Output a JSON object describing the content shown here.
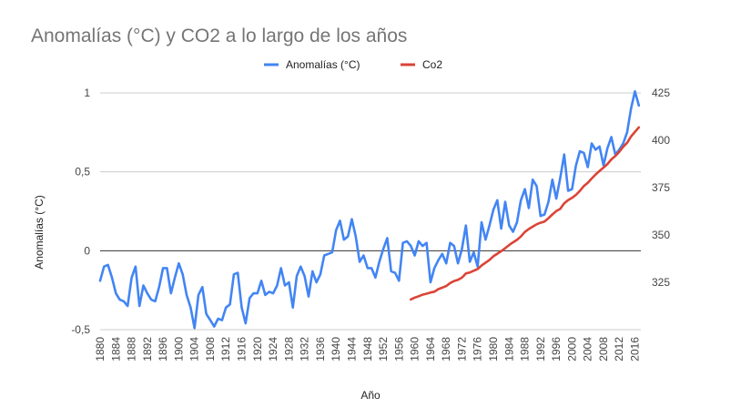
{
  "chart_data": {
    "type": "line",
    "title": "Anomalías (°C) y CO2 a lo largo de los años",
    "xlabel": "Año",
    "ylabel": "Anomalías (°C)",
    "y2label": "",
    "xlim": [
      1880,
      2017
    ],
    "ylim": [
      -0.5,
      1
    ],
    "y2lim": [
      300,
      425
    ],
    "yticks": [
      -0.5,
      0,
      0.5,
      1
    ],
    "ytick_labels": [
      "-0,5",
      "0",
      "0,5",
      "1"
    ],
    "y2ticks": [
      325,
      350,
      375,
      400,
      425
    ],
    "y2tick_labels": [
      "325",
      "350",
      "375",
      "400",
      "425"
    ],
    "xticks": [
      1880,
      1884,
      1888,
      1892,
      1896,
      1900,
      1904,
      1908,
      1912,
      1916,
      1920,
      1924,
      1928,
      1932,
      1936,
      1940,
      1944,
      1948,
      1952,
      1956,
      1960,
      1964,
      1968,
      1972,
      1976,
      1980,
      1984,
      1988,
      1992,
      1996,
      2000,
      2004,
      2008,
      2012,
      2016
    ],
    "grid": true,
    "legend_position": "top",
    "series": [
      {
        "name": "Anomalías (°C)",
        "axis": "left",
        "color": "#4285f4",
        "x": [
          1880,
          1881,
          1882,
          1883,
          1884,
          1885,
          1886,
          1887,
          1888,
          1889,
          1890,
          1891,
          1892,
          1893,
          1894,
          1895,
          1896,
          1897,
          1898,
          1899,
          1900,
          1901,
          1902,
          1903,
          1904,
          1905,
          1906,
          1907,
          1908,
          1909,
          1910,
          1911,
          1912,
          1913,
          1914,
          1915,
          1916,
          1917,
          1918,
          1919,
          1920,
          1921,
          1922,
          1923,
          1924,
          1925,
          1926,
          1927,
          1928,
          1929,
          1930,
          1931,
          1932,
          1933,
          1934,
          1935,
          1936,
          1937,
          1938,
          1939,
          1940,
          1941,
          1942,
          1943,
          1944,
          1945,
          1946,
          1947,
          1948,
          1949,
          1950,
          1951,
          1952,
          1953,
          1954,
          1955,
          1956,
          1957,
          1958,
          1959,
          1960,
          1961,
          1962,
          1963,
          1964,
          1965,
          1966,
          1967,
          1968,
          1969,
          1970,
          1971,
          1972,
          1973,
          1974,
          1975,
          1976,
          1977,
          1978,
          1979,
          1980,
          1981,
          1982,
          1983,
          1984,
          1985,
          1986,
          1987,
          1988,
          1989,
          1990,
          1991,
          1992,
          1993,
          1994,
          1995,
          1996,
          1997,
          1998,
          1999,
          2000,
          2001,
          2002,
          2003,
          2004,
          2005,
          2006,
          2007,
          2008,
          2009,
          2010,
          2011,
          2012,
          2013,
          2014,
          2015,
          2016,
          2017
        ],
        "values": [
          -0.19,
          -0.1,
          -0.09,
          -0.17,
          -0.27,
          -0.31,
          -0.32,
          -0.35,
          -0.17,
          -0.1,
          -0.35,
          -0.22,
          -0.27,
          -0.31,
          -0.32,
          -0.23,
          -0.11,
          -0.11,
          -0.27,
          -0.17,
          -0.08,
          -0.15,
          -0.28,
          -0.36,
          -0.49,
          -0.28,
          -0.23,
          -0.4,
          -0.44,
          -0.48,
          -0.43,
          -0.44,
          -0.36,
          -0.34,
          -0.15,
          -0.14,
          -0.36,
          -0.46,
          -0.3,
          -0.27,
          -0.27,
          -0.19,
          -0.28,
          -0.26,
          -0.27,
          -0.22,
          -0.11,
          -0.22,
          -0.2,
          -0.36,
          -0.16,
          -0.1,
          -0.16,
          -0.29,
          -0.13,
          -0.2,
          -0.15,
          -0.03,
          -0.02,
          -0.01,
          0.13,
          0.19,
          0.07,
          0.09,
          0.2,
          0.09,
          -0.07,
          -0.03,
          -0.11,
          -0.11,
          -0.17,
          -0.07,
          0.01,
          0.08,
          -0.13,
          -0.14,
          -0.19,
          0.05,
          0.06,
          0.03,
          -0.03,
          0.06,
          0.03,
          0.05,
          -0.2,
          -0.11,
          -0.06,
          -0.02,
          -0.08,
          0.05,
          0.03,
          -0.08,
          0.01,
          0.16,
          -0.07,
          -0.01,
          -0.1,
          0.18,
          0.07,
          0.16,
          0.26,
          0.32,
          0.14,
          0.31,
          0.16,
          0.12,
          0.18,
          0.32,
          0.39,
          0.27,
          0.45,
          0.41,
          0.22,
          0.23,
          0.31,
          0.45,
          0.33,
          0.46,
          0.61,
          0.38,
          0.39,
          0.54,
          0.63,
          0.62,
          0.53,
          0.68,
          0.64,
          0.66,
          0.54,
          0.65,
          0.72,
          0.61,
          0.64,
          0.68,
          0.75,
          0.9,
          1.01,
          0.92
        ]
      },
      {
        "name": "Co2",
        "axis": "right",
        "color": "#db4437",
        "x": [
          1959,
          1960,
          1961,
          1962,
          1963,
          1964,
          1965,
          1966,
          1967,
          1968,
          1969,
          1970,
          1971,
          1972,
          1973,
          1974,
          1975,
          1976,
          1977,
          1978,
          1979,
          1980,
          1981,
          1982,
          1983,
          1984,
          1985,
          1986,
          1987,
          1988,
          1989,
          1990,
          1991,
          1992,
          1993,
          1994,
          1995,
          1996,
          1997,
          1998,
          1999,
          2000,
          2001,
          2002,
          2003,
          2004,
          2005,
          2006,
          2007,
          2008,
          2009,
          2010,
          2011,
          2012,
          2013,
          2014,
          2015,
          2016,
          2017
        ],
        "values": [
          315.97,
          316.91,
          317.64,
          318.45,
          318.99,
          319.62,
          320.04,
          321.38,
          322.16,
          323.04,
          324.62,
          325.68,
          326.32,
          327.45,
          329.68,
          330.18,
          331.11,
          332.04,
          333.83,
          335.4,
          336.84,
          338.75,
          340.11,
          341.45,
          343.05,
          344.65,
          346.12,
          347.42,
          349.19,
          351.57,
          353.12,
          354.39,
          355.61,
          356.45,
          357.1,
          358.83,
          360.82,
          362.61,
          363.73,
          366.7,
          368.38,
          369.55,
          371.14,
          373.28,
          375.8,
          377.55,
          379.8,
          381.9,
          383.79,
          385.6,
          387.43,
          389.9,
          391.65,
          393.85,
          396.52,
          398.65,
          401.99,
          404.41,
          406.76
        ]
      }
    ]
  }
}
